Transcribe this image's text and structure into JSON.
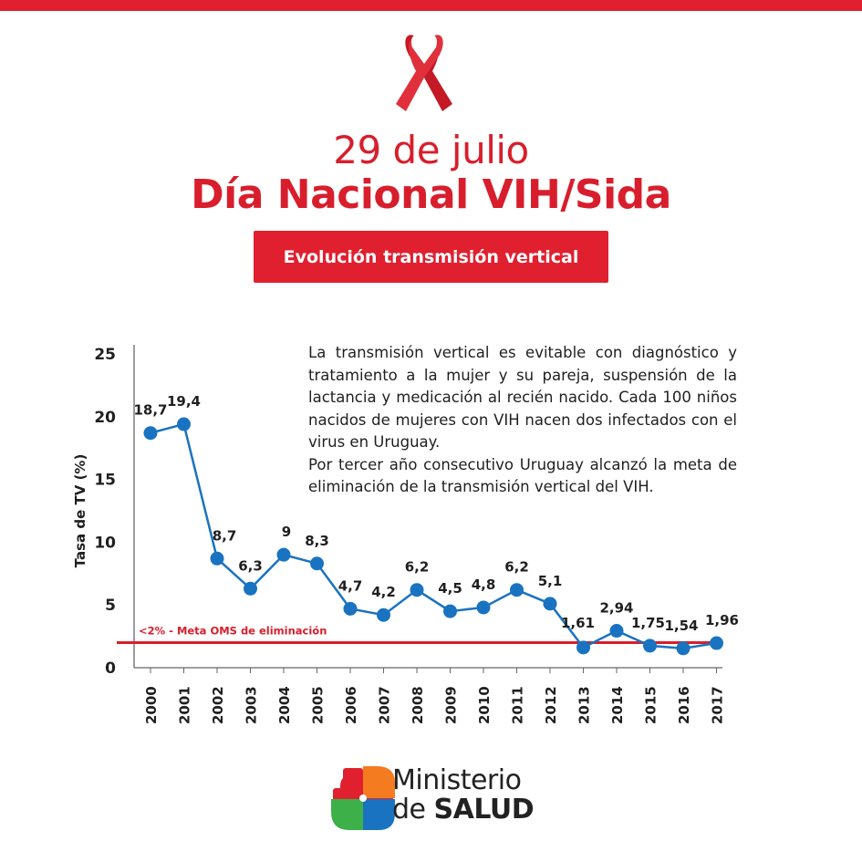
{
  "header": {
    "date": "29 de julio",
    "title": "Día Nacional VIH/Sida",
    "subtitle": "Evolución transmisión vertical"
  },
  "description": {
    "paragraph1": "La transmisión vertical es evitable con diagnóstico y tratamiento a la mujer y su pareja, suspensión de la lactancia y medicación al recién nacido. Cada 100 niños nacidos de mujeres con VIH nacen dos infectados con el virus en Uruguay.",
    "paragraph2": "Por tercer año consecutivo Uruguay alcanzó la meta de eliminación de la transmisión vertical del VIH."
  },
  "logo": {
    "line1": "Ministerio",
    "line2_prefix": "de ",
    "line2_bold": "SALUD"
  },
  "colors": {
    "brand_red": "#e0202f",
    "series_blue": "#1a73c0",
    "threshold_red": "#d81e2c"
  },
  "chart_data": {
    "type": "line",
    "ylabel": "Tasa de TV (%)",
    "ylim": [
      0,
      25
    ],
    "yticks": [
      0,
      5,
      10,
      15,
      20,
      25
    ],
    "x": [
      "2000",
      "2001",
      "2002",
      "2003",
      "2004",
      "2005",
      "2006",
      "2007",
      "2008",
      "2009",
      "2010",
      "2011",
      "2012",
      "2013",
      "2014",
      "2015",
      "2016",
      "2017"
    ],
    "values": [
      18.7,
      19.4,
      8.7,
      6.3,
      9,
      8.3,
      4.7,
      4.2,
      6.2,
      4.5,
      4.8,
      6.2,
      5.1,
      1.61,
      2.94,
      1.75,
      1.54,
      1.96
    ],
    "data_labels": [
      "18,7",
      "19,4",
      "8,7",
      "6,3",
      "9",
      "8,3",
      "4,7",
      "4,2",
      "6,2",
      "4,5",
      "4,8",
      "6,2",
      "5,1",
      "1,61",
      "2,94",
      "1,75",
      "1,54",
      "1,96"
    ],
    "threshold": {
      "value": 2,
      "label": "<2% - Meta OMS de eliminación"
    },
    "grid": false
  }
}
